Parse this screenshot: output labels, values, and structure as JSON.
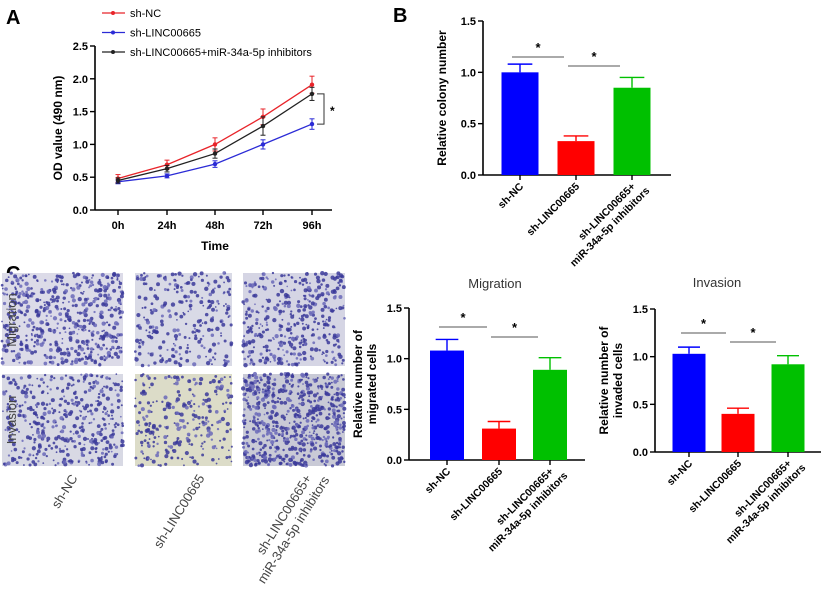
{
  "panel_labels": {
    "a": "A",
    "b": "B",
    "c": "C"
  },
  "colors": {
    "sh-NC": "#e8242a",
    "sh-LINC00665": "#2b2bd6",
    "combo": "#222222",
    "bar_blue": "#0000ff",
    "bar_red": "#ff0000",
    "bar_green": "#00c000"
  },
  "photos": {
    "row_labels": [
      "Migration",
      "Invasion"
    ],
    "col_labels": [
      [
        "sh-NC"
      ],
      [
        "sh-LINC00665"
      ],
      [
        "sh-LINC00665+",
        "miR-34a-5p inhibitors"
      ]
    ]
  },
  "chart_data": [
    {
      "id": "A",
      "type": "line",
      "xlabel": "Time",
      "ylabel": "OD value (490 nm)",
      "categories": [
        "0h",
        "24h",
        "48h",
        "72h",
        "96h"
      ],
      "ylim": [
        0,
        2.5
      ],
      "yticks": [
        "0.0",
        "0.5",
        "1.0",
        "1.5",
        "2.0",
        "2.5"
      ],
      "legend_placement": "top",
      "series": [
        {
          "name": "sh-NC",
          "color": "#e8242a",
          "values": [
            0.48,
            0.69,
            1.0,
            1.42,
            1.91
          ],
          "errors": [
            0.06,
            0.07,
            0.1,
            0.12,
            0.13
          ]
        },
        {
          "name": "sh-LINC00665",
          "color": "#2b2bd6",
          "values": [
            0.43,
            0.52,
            0.7,
            1.0,
            1.31
          ],
          "errors": [
            0.03,
            0.03,
            0.05,
            0.07,
            0.08
          ]
        },
        {
          "name": "sh-LINC00665+miR-34a-5p inhibitors",
          "color": "#222222",
          "values": [
            0.45,
            0.63,
            0.86,
            1.28,
            1.77
          ],
          "errors": [
            0.04,
            0.05,
            0.07,
            0.14,
            0.1
          ]
        }
      ],
      "annotation": "*"
    },
    {
      "id": "B",
      "type": "bar",
      "title": "",
      "ylabel": [
        "Relative colony number"
      ],
      "categories": [
        [
          "sh-NC"
        ],
        [
          "sh-LINC00665"
        ],
        [
          "sh-LINC00665+",
          "miR-34a-5p inhibitors"
        ]
      ],
      "values": [
        1.0,
        0.33,
        0.85
      ],
      "errors": [
        0.08,
        0.05,
        0.1
      ],
      "ylim": [
        0,
        1.5
      ],
      "yticks": [
        "0.0",
        "0.5",
        "1.0",
        "1.5"
      ],
      "significance": [
        "*",
        "*"
      ]
    },
    {
      "id": "C-migration",
      "type": "bar",
      "title": "Migration",
      "ylabel": [
        "Relative number of",
        "migrated cells"
      ],
      "categories": [
        [
          "sh-NC"
        ],
        [
          "sh-LINC00665"
        ],
        [
          "sh-LINC00665+",
          "miR-34a-5p inhibitors"
        ]
      ],
      "values": [
        1.08,
        0.31,
        0.89
      ],
      "errors": [
        0.11,
        0.07,
        0.12
      ],
      "ylim": [
        0,
        1.5
      ],
      "yticks": [
        "0.0",
        "0.5",
        "1.0",
        "1.5"
      ],
      "significance": [
        "*",
        "*"
      ]
    },
    {
      "id": "C-invasion",
      "type": "bar",
      "title": "Invasion",
      "ylabel": [
        "Relative number of",
        "invaded cells"
      ],
      "categories": [
        [
          "sh-NC"
        ],
        [
          "sh-LINC00665"
        ],
        [
          "sh-LINC00665+",
          "miR-34a-5p inhibitors"
        ]
      ],
      "values": [
        1.03,
        0.4,
        0.92
      ],
      "errors": [
        0.07,
        0.06,
        0.09
      ],
      "ylim": [
        0,
        1.5
      ],
      "yticks": [
        "0.0",
        "0.5",
        "1.0",
        "1.5"
      ],
      "significance": [
        "*",
        "*"
      ]
    }
  ]
}
